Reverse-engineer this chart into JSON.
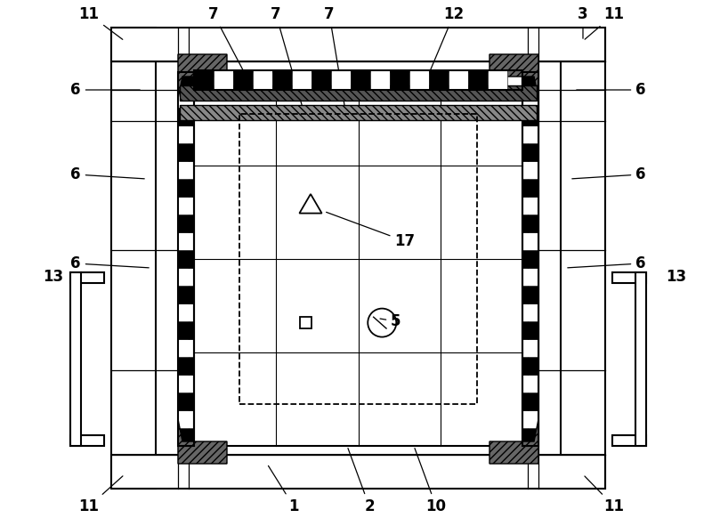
{
  "fig_width": 8.0,
  "fig_height": 5.91,
  "bg_color": "#ffffff",
  "lc": "#000000",
  "fs": 12
}
